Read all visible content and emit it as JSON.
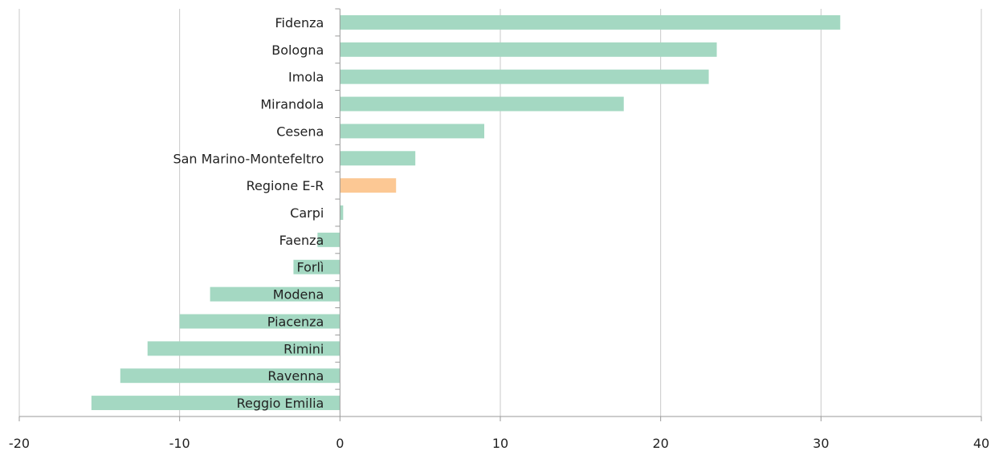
{
  "chart_data": {
    "type": "bar",
    "orientation": "horizontal",
    "categories": [
      "Fidenza",
      "Bologna",
      "Imola",
      "Mirandola",
      "Cesena",
      "San Marino-Montefeltro",
      "Regione E-R",
      "Carpi",
      "Faenza",
      "Forlì",
      "Modena",
      "Piacenza",
      "Rimini",
      "Ravenna",
      "Reggio Emilia"
    ],
    "values": [
      31.2,
      23.5,
      23.0,
      17.7,
      9.0,
      4.7,
      3.5,
      0.2,
      -1.4,
      -2.9,
      -8.1,
      -10.0,
      -12.0,
      -13.7,
      -15.5
    ],
    "colors": [
      "#a4d8c2",
      "#a4d8c2",
      "#a4d8c2",
      "#a4d8c2",
      "#a4d8c2",
      "#a4d8c2",
      "#fcc894",
      "#a4d8c2",
      "#a4d8c2",
      "#a4d8c2",
      "#a4d8c2",
      "#a4d8c2",
      "#a4d8c2",
      "#a4d8c2",
      "#a4d8c2"
    ],
    "xlim": [
      -20,
      40
    ],
    "xticks": [
      -20,
      -10,
      0,
      10,
      20,
      30,
      40
    ],
    "xtick_labels": [
      "-20",
      "-10",
      "0",
      "10",
      "20",
      "30",
      "40"
    ],
    "grid": true,
    "title": "",
    "xlabel": "",
    "ylabel": ""
  }
}
